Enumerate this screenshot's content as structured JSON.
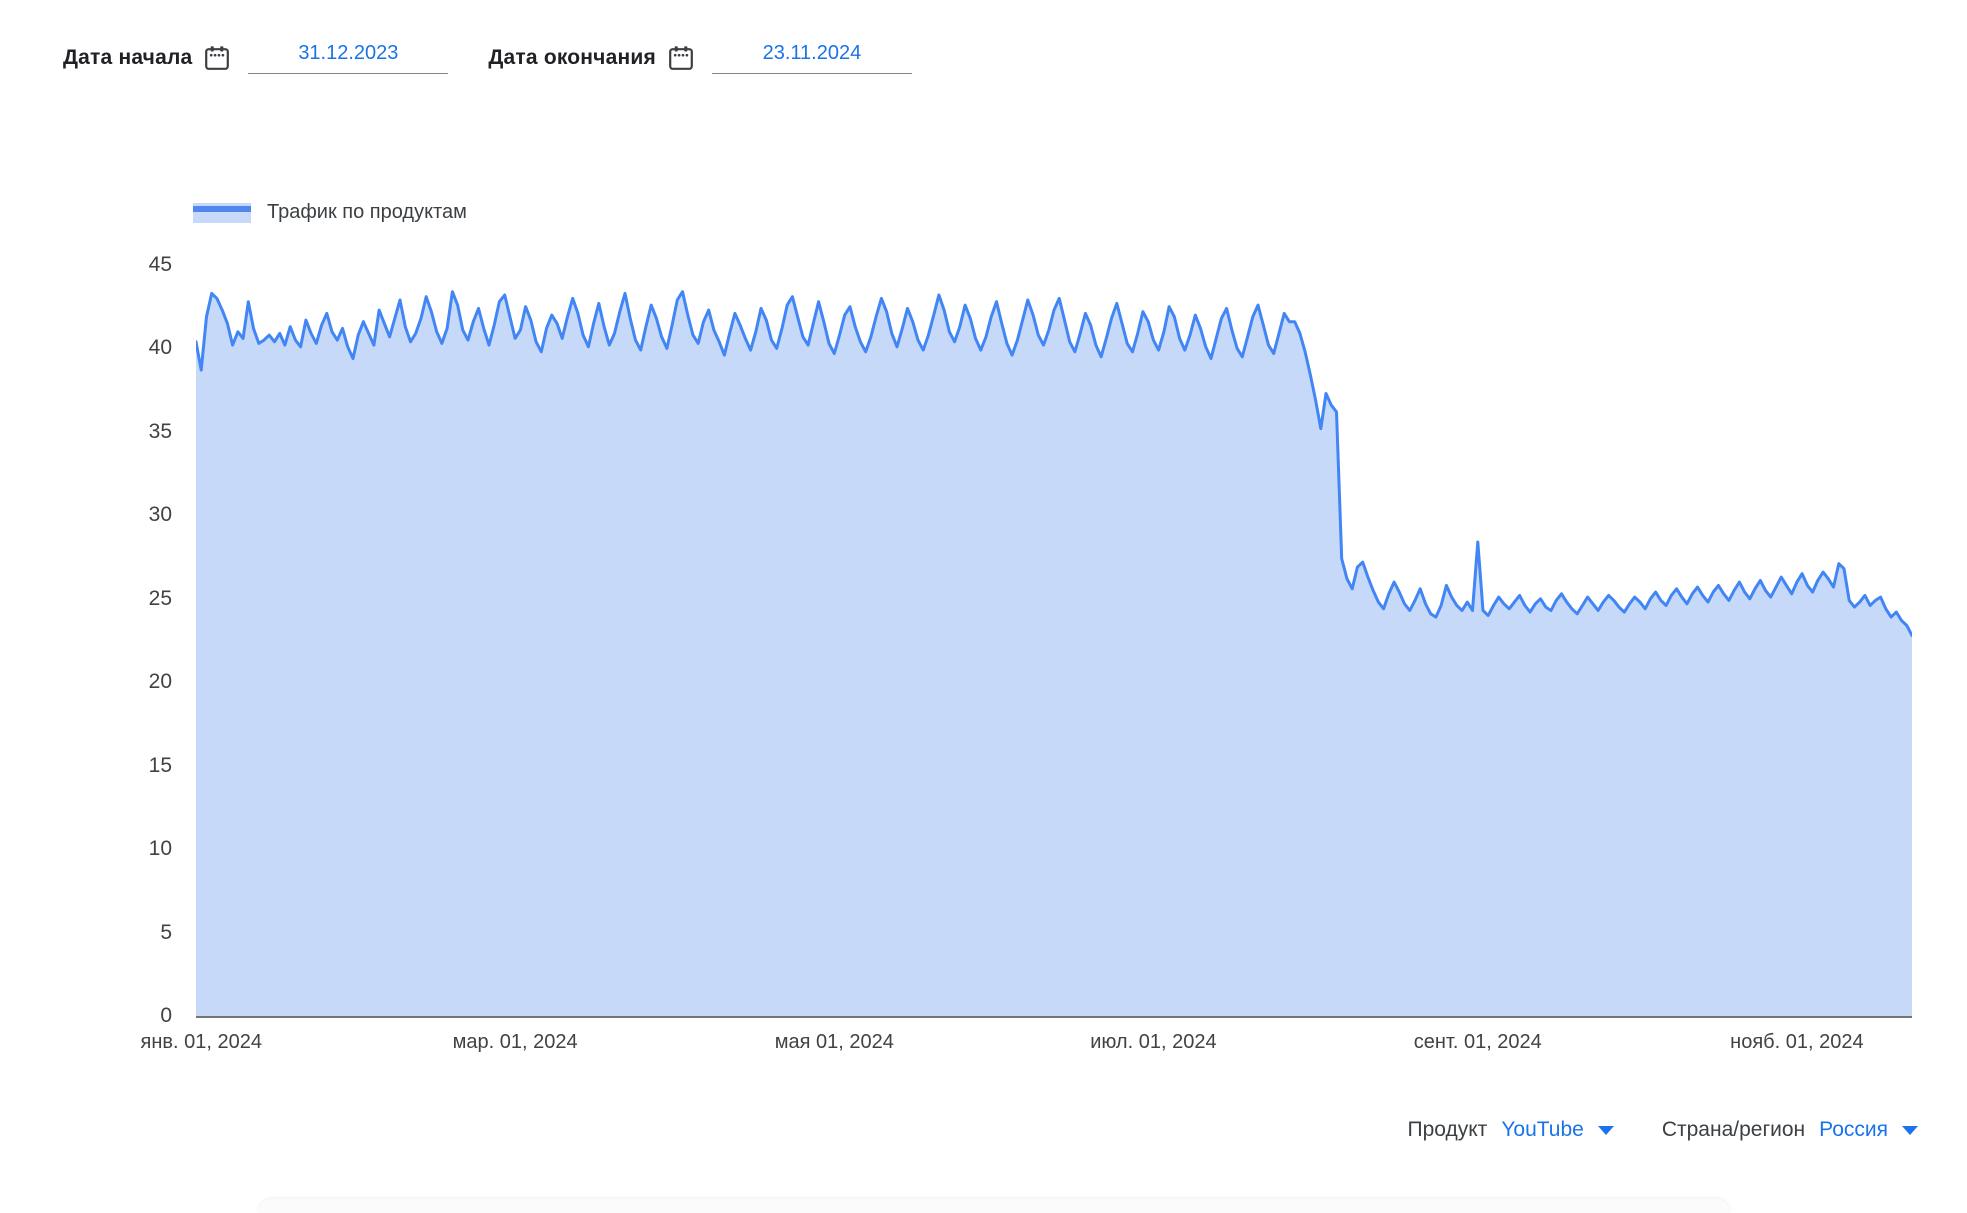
{
  "controls": {
    "start_date": {
      "label": "Дата начала",
      "value": "31.12.2023"
    },
    "end_date": {
      "label": "Дата окончания",
      "value": "23.11.2024"
    }
  },
  "legend": {
    "label": "Трафик по продуктам"
  },
  "filters": {
    "product": {
      "label": "Продукт",
      "value": "YouTube"
    },
    "region": {
      "label": "Страна/регион",
      "value": "Россия"
    }
  },
  "icons": {
    "calendar": "calendar-icon",
    "dropdown": "chevron-down-icon"
  },
  "colors": {
    "accent_blue": "#1a73e8",
    "line": "#4285f4",
    "fill": "#c7d9f8",
    "axis_line": "#757575",
    "text_dark": "#202124",
    "text_gray": "#424242"
  },
  "chart_data": {
    "type": "area",
    "title": "Трафик по продуктам",
    "x_start": "31.12.2023",
    "x_end": "23.11.2024",
    "x_unit": "day",
    "xlabel": "",
    "ylabel": "",
    "ylim": [
      0,
      45
    ],
    "grid": false,
    "legend_position": "top-left",
    "yticks": [
      0,
      5,
      10,
      15,
      20,
      25,
      30,
      35,
      40,
      45
    ],
    "xticks": [
      {
        "label": "янв. 01, 2024",
        "day": 1
      },
      {
        "label": "мар. 01, 2024",
        "day": 61
      },
      {
        "label": "мая 01, 2024",
        "day": 122
      },
      {
        "label": "июл. 01, 2024",
        "day": 183
      },
      {
        "label": "сент. 01, 2024",
        "day": 245
      },
      {
        "label": "нояб. 01, 2024",
        "day": 306
      }
    ],
    "values": [
      40.4,
      38.7,
      41.9,
      43.3,
      43.0,
      42.3,
      41.5,
      40.2,
      41.0,
      40.6,
      42.8,
      41.2,
      40.3,
      40.5,
      40.8,
      40.4,
      40.9,
      40.2,
      41.3,
      40.5,
      40.1,
      41.7,
      40.9,
      40.3,
      41.4,
      42.1,
      41.0,
      40.5,
      41.2,
      40.1,
      39.4,
      40.8,
      41.6,
      40.9,
      40.2,
      42.3,
      41.5,
      40.7,
      41.8,
      42.9,
      41.3,
      40.4,
      40.9,
      41.8,
      43.1,
      42.2,
      41.0,
      40.3,
      41.2,
      43.4,
      42.6,
      41.1,
      40.5,
      41.6,
      42.4,
      41.2,
      40.2,
      41.4,
      42.8,
      43.2,
      41.9,
      40.6,
      41.1,
      42.5,
      41.7,
      40.4,
      39.8,
      41.2,
      42.0,
      41.5,
      40.6,
      41.9,
      43.0,
      42.1,
      40.8,
      40.1,
      41.5,
      42.7,
      41.3,
      40.2,
      40.9,
      42.2,
      43.3,
      41.8,
      40.5,
      39.9,
      41.3,
      42.6,
      41.8,
      40.7,
      40.0,
      41.4,
      42.9,
      43.4,
      42.0,
      40.8,
      40.3,
      41.6,
      42.3,
      41.1,
      40.4,
      39.6,
      40.9,
      42.1,
      41.4,
      40.6,
      39.9,
      41.0,
      42.4,
      41.7,
      40.5,
      40.0,
      41.2,
      42.6,
      43.1,
      41.9,
      40.7,
      40.2,
      41.5,
      42.8,
      41.6,
      40.3,
      39.7,
      40.8,
      42.0,
      42.5,
      41.3,
      40.4,
      39.8,
      40.7,
      41.9,
      43.0,
      42.2,
      40.9,
      40.1,
      41.2,
      42.4,
      41.6,
      40.5,
      39.9,
      40.8,
      42.0,
      43.2,
      42.3,
      41.0,
      40.4,
      41.3,
      42.6,
      41.8,
      40.6,
      39.9,
      40.7,
      41.9,
      42.8,
      41.5,
      40.3,
      39.6,
      40.5,
      41.7,
      42.9,
      42.0,
      40.8,
      40.2,
      41.1,
      42.3,
      43.0,
      41.7,
      40.4,
      39.8,
      40.9,
      42.1,
      41.4,
      40.2,
      39.5,
      40.6,
      41.8,
      42.7,
      41.5,
      40.3,
      39.8,
      40.9,
      42.2,
      41.6,
      40.5,
      39.9,
      41.0,
      42.5,
      41.9,
      40.6,
      39.9,
      40.8,
      42.0,
      41.2,
      40.1,
      39.4,
      40.6,
      41.8,
      42.4,
      41.1,
      40.0,
      39.5,
      40.7,
      41.9,
      42.6,
      41.4,
      40.2,
      39.7,
      40.9,
      42.1,
      41.6,
      41.6,
      40.9,
      39.8,
      38.4,
      36.9,
      35.2,
      37.3,
      36.6,
      36.2,
      27.4,
      26.2,
      25.6,
      26.9,
      27.2,
      26.3,
      25.5,
      24.8,
      24.4,
      25.3,
      26.0,
      25.4,
      24.7,
      24.3,
      24.9,
      25.6,
      24.7,
      24.1,
      23.9,
      24.6,
      25.8,
      25.1,
      24.6,
      24.3,
      24.8,
      24.3,
      28.4,
      24.3,
      24.0,
      24.6,
      25.1,
      24.7,
      24.4,
      24.8,
      25.2,
      24.6,
      24.2,
      24.7,
      25.0,
      24.5,
      24.3,
      24.9,
      25.3,
      24.8,
      24.4,
      24.1,
      24.6,
      25.1,
      24.7,
      24.3,
      24.8,
      25.2,
      24.9,
      24.5,
      24.2,
      24.7,
      25.1,
      24.8,
      24.4,
      25.0,
      25.4,
      24.9,
      24.6,
      25.2,
      25.6,
      25.1,
      24.7,
      25.3,
      25.7,
      25.2,
      24.8,
      25.4,
      25.8,
      25.3,
      24.9,
      25.5,
      26.0,
      25.4,
      25.0,
      25.6,
      26.1,
      25.5,
      25.1,
      25.7,
      26.3,
      25.8,
      25.3,
      26.0,
      26.5,
      25.8,
      25.4,
      26.1,
      26.6,
      26.2,
      25.7,
      27.1,
      26.8,
      24.9,
      24.5,
      24.8,
      25.2,
      24.6,
      24.9,
      25.1,
      24.4,
      23.9,
      24.2,
      23.7,
      23.4,
      22.8
    ]
  }
}
